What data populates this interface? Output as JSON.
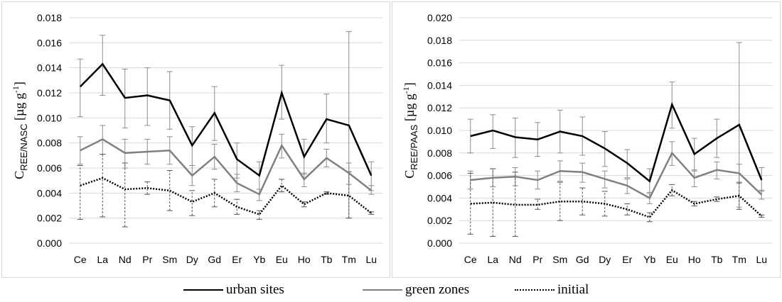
{
  "chart_data": [
    {
      "type": "line",
      "ylabel": "C",
      "ylabel_sub": "REE/NASC",
      "ylabel_unit": " [µg g",
      "ylabel_sup": "-1",
      "ylabel_end": "]",
      "ylim": [
        0,
        0.018
      ],
      "yticks": [
        "0.000",
        "0.002",
        "0.004",
        "0.006",
        "0.008",
        "0.010",
        "0.012",
        "0.014",
        "0.016",
        "0.018"
      ],
      "grid": true,
      "categories": [
        "Ce",
        "La",
        "Nd",
        "Pr",
        "Sm",
        "Dy",
        "Gd",
        "Er",
        "Yb",
        "Eu",
        "Ho",
        "Tb",
        "Tm",
        "Lu"
      ],
      "series": [
        {
          "name": "urban sites",
          "color": "#000000",
          "values": [
            0.0125,
            0.0143,
            0.0116,
            0.0118,
            0.0114,
            0.0078,
            0.0104,
            0.0067,
            0.0054,
            0.012,
            0.0069,
            0.0099,
            0.0094,
            0.0054
          ],
          "err_low": [
            0.0101,
            0.0118,
            0.0092,
            0.0094,
            0.0091,
            0.0062,
            0.0082,
            0.0052,
            0.0043,
            0.0099,
            0.0055,
            0.008,
            0.002,
            0.0042
          ],
          "err_high": [
            0.0147,
            0.0166,
            0.0139,
            0.014,
            0.0137,
            0.0093,
            0.0125,
            0.008,
            0.0065,
            0.0142,
            0.0083,
            0.0119,
            0.0169,
            0.0065
          ]
        },
        {
          "name": "green zones",
          "color": "#808080",
          "values": [
            0.0074,
            0.0083,
            0.0072,
            0.0073,
            0.0074,
            0.0054,
            0.0069,
            0.0048,
            0.0039,
            0.0078,
            0.0051,
            0.0068,
            0.0056,
            0.0042
          ],
          "err_low": [
            0.0063,
            0.0071,
            0.006,
            0.0063,
            0.0063,
            0.0046,
            0.0059,
            0.0041,
            0.0034,
            0.0068,
            0.0045,
            0.0061,
            0.0047,
            0.0039
          ],
          "err_high": [
            0.0085,
            0.0094,
            0.0083,
            0.0083,
            0.0085,
            0.0062,
            0.0079,
            0.0055,
            0.0043,
            0.0087,
            0.0056,
            0.0075,
            0.0064,
            0.0046
          ]
        },
        {
          "name": "initial",
          "color": "#000000",
          "dash": "2,2",
          "values": [
            0.0046,
            0.0052,
            0.0043,
            0.0044,
            0.0042,
            0.0033,
            0.004,
            0.0029,
            0.0023,
            0.0046,
            0.0031,
            0.004,
            0.0038,
            0.0024
          ],
          "err_low": [
            0.0019,
            0.0021,
            0.0013,
            0.0039,
            0.0026,
            0.0022,
            0.0029,
            0.0023,
            0.0019,
            0.0041,
            0.0029,
            0.0039,
            0.002,
            0.0023
          ],
          "err_high": [
            0.0062,
            0.0071,
            0.0064,
            0.0049,
            0.0058,
            0.0042,
            0.0051,
            0.0035,
            0.0026,
            0.0051,
            0.0033,
            0.0041,
            0.0057,
            0.0025
          ]
        }
      ]
    },
    {
      "type": "line",
      "ylabel": "C",
      "ylabel_sub": "REE/PAAS",
      "ylabel_unit": " [µg g",
      "ylabel_sup": "-1",
      "ylabel_end": "]",
      "ylim": [
        0,
        0.02
      ],
      "yticks": [
        "0.000",
        "0.002",
        "0.004",
        "0.006",
        "0.008",
        "0.010",
        "0.012",
        "0.014",
        "0.016",
        "0.018",
        "0.020"
      ],
      "grid": true,
      "categories": [
        "Ce",
        "La",
        "Nd",
        "Pr",
        "Sm",
        "Gd",
        "Dy",
        "Er",
        "Yb",
        "Eu",
        "Ho",
        "Tb",
        "Tm",
        "Lu"
      ],
      "series": [
        {
          "name": "urban sites",
          "color": "#000000",
          "values": [
            0.0095,
            0.01,
            0.0094,
            0.0092,
            0.0099,
            0.0095,
            0.0084,
            0.0071,
            0.0055,
            0.0123,
            0.0079,
            0.0093,
            0.0105,
            0.0056
          ],
          "err_low": [
            0.008,
            0.0084,
            0.0076,
            0.0077,
            0.008,
            0.0078,
            0.0068,
            0.0058,
            0.0045,
            0.0102,
            0.0064,
            0.0076,
            0.0032,
            0.0046
          ],
          "err_high": [
            0.011,
            0.0114,
            0.0111,
            0.0107,
            0.0118,
            0.0112,
            0.0099,
            0.0083,
            0.0066,
            0.0143,
            0.0093,
            0.011,
            0.0178,
            0.0067
          ]
        },
        {
          "name": "green zones",
          "color": "#808080",
          "values": [
            0.0056,
            0.0058,
            0.0059,
            0.0056,
            0.0064,
            0.0063,
            0.0057,
            0.0051,
            0.004,
            0.008,
            0.0058,
            0.0065,
            0.0062,
            0.0043
          ],
          "err_low": [
            0.0048,
            0.005,
            0.0051,
            0.0048,
            0.0055,
            0.0054,
            0.0049,
            0.0044,
            0.0035,
            0.0069,
            0.005,
            0.0057,
            0.0053,
            0.0039
          ],
          "err_high": [
            0.0064,
            0.0066,
            0.0067,
            0.0064,
            0.0073,
            0.0071,
            0.0064,
            0.0057,
            0.0044,
            0.009,
            0.0065,
            0.0072,
            0.007,
            0.0047
          ]
        },
        {
          "name": "initial",
          "color": "#000000",
          "dash": "2,2",
          "values": [
            0.0035,
            0.0036,
            0.0034,
            0.0034,
            0.0037,
            0.0037,
            0.0035,
            0.003,
            0.0023,
            0.0047,
            0.0035,
            0.0039,
            0.0042,
            0.0024
          ],
          "err_low": [
            0.0008,
            0.0006,
            0.0006,
            0.003,
            0.002,
            0.0025,
            0.0024,
            0.0025,
            0.0019,
            0.0042,
            0.0033,
            0.0037,
            0.003,
            0.0023
          ],
          "err_high": [
            0.0062,
            0.0066,
            0.0063,
            0.0039,
            0.0054,
            0.0049,
            0.0046,
            0.0035,
            0.0027,
            0.0052,
            0.0037,
            0.0041,
            0.0054,
            0.0025
          ]
        }
      ]
    }
  ],
  "legend": [
    {
      "label": "urban sites",
      "color": "#000000",
      "style": "solid"
    },
    {
      "label": "green zones",
      "color": "#808080",
      "style": "solid"
    },
    {
      "label": "initial",
      "color": "#000000",
      "style": "dotted"
    }
  ]
}
